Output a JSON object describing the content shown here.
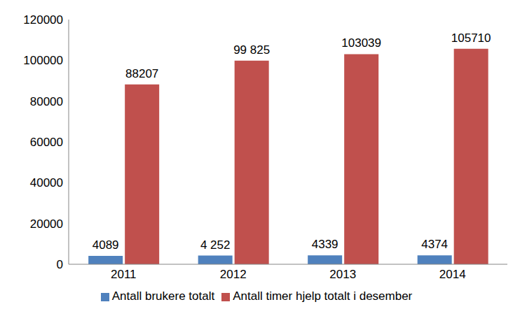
{
  "chart_data": {
    "type": "bar",
    "categories": [
      "2011",
      "2012",
      "2013",
      "2014"
    ],
    "series": [
      {
        "name": "Antall brukere totalt",
        "color": "#4f81bd",
        "values": [
          4089,
          4252,
          4339,
          4374
        ],
        "value_labels": [
          "4089",
          "4 252",
          "4339",
          "4374"
        ]
      },
      {
        "name": "Antall timer hjelp totalt i desember",
        "color": "#c0504d",
        "values": [
          88207,
          99825,
          103039,
          105710
        ],
        "value_labels": [
          "88207",
          "99 825",
          "103039",
          "105710"
        ]
      }
    ],
    "ylim": [
      0,
      120000
    ],
    "yticks": [
      0,
      20000,
      40000,
      60000,
      80000,
      100000,
      120000
    ],
    "grid": false,
    "legend": "bottom",
    "data_labels": true
  }
}
